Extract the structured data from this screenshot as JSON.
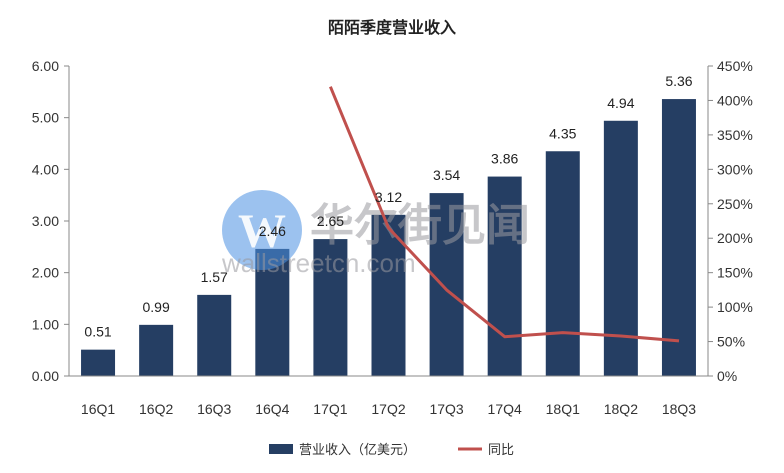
{
  "chart_data": {
    "type": "bar",
    "title": "陌陌季度营业收入",
    "categories": [
      "16Q1",
      "16Q2",
      "16Q3",
      "16Q4",
      "17Q1",
      "17Q2",
      "17Q3",
      "17Q4",
      "18Q1",
      "18Q2",
      "18Q3"
    ],
    "series": [
      {
        "name": "营业收入（亿美元）",
        "type": "bar",
        "axis": "left",
        "values": [
          0.51,
          0.99,
          1.57,
          2.46,
          2.65,
          3.12,
          3.54,
          3.86,
          4.35,
          4.94,
          5.36
        ],
        "labels": [
          "0.51",
          "0.99",
          "1.57",
          "2.46",
          "2.65",
          "3.12",
          "3.54",
          "3.86",
          "4.35",
          "4.94",
          "5.36"
        ],
        "color": "#253e63"
      },
      {
        "name": "同比",
        "type": "line",
        "axis": "right",
        "values": [
          null,
          null,
          null,
          null,
          420,
          215,
          125,
          57,
          63,
          58,
          51
        ],
        "color": "#c0504d"
      }
    ],
    "ylim": [
      0,
      6
    ],
    "y_ticks": [
      "0.00",
      "1.00",
      "2.00",
      "3.00",
      "4.00",
      "5.00",
      "6.00"
    ],
    "y2lim": [
      0,
      450
    ],
    "y2_ticks": [
      "0%",
      "50%",
      "100%",
      "150%",
      "200%",
      "250%",
      "300%",
      "350%",
      "400%",
      "450%"
    ],
    "legend_position": "bottom",
    "grid": false
  },
  "watermark": {
    "cn": "华尔街见闻",
    "en": "wallstreetcn.com",
    "logo_color": "#4a90e2"
  }
}
